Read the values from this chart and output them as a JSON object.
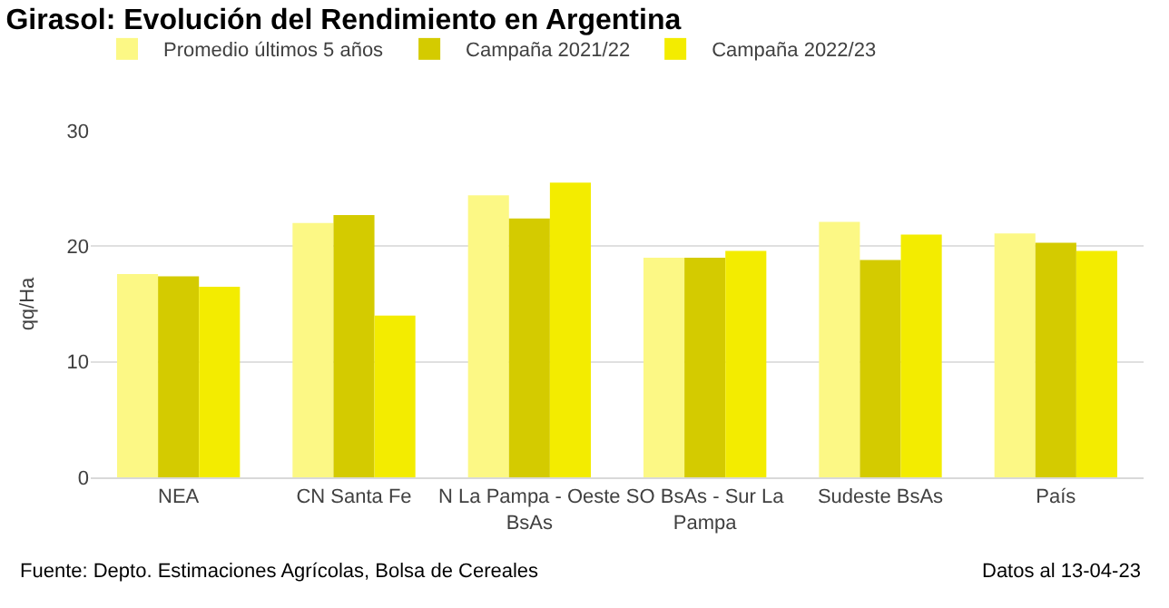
{
  "chart_data": {
    "type": "bar",
    "title": "Girasol: Evolución del Rendimiento en Argentina",
    "ylabel": "qq/Ha",
    "categories": [
      "NEA",
      "CN Santa Fe",
      "N La Pampa - Oeste BsAs",
      "SO BsAs - Sur La Pampa",
      "Sudeste BsAs",
      "País"
    ],
    "series": [
      {
        "name": "Promedio últimos 5 años",
        "color": "#fcf885",
        "values": [
          17.6,
          22.0,
          24.4,
          19.0,
          22.1,
          21.1
        ]
      },
      {
        "name": "Campaña 2021/22",
        "color": "#d4cb00",
        "values": [
          17.4,
          22.7,
          22.4,
          19.0,
          18.8,
          20.3
        ]
      },
      {
        "name": "Campaña 2022/23",
        "color": "#f3ec00",
        "values": [
          16.5,
          14.0,
          25.5,
          19.6,
          21.0,
          19.6
        ]
      }
    ],
    "ylim": [
      0,
      30
    ],
    "yticks": [
      0,
      10,
      20,
      30
    ],
    "grid": "y",
    "legend": "top left",
    "annotations": [
      "Fuente: Depto. Estimaciones Agrícolas, Bolsa de Cereales",
      "Datos al 13-04-23"
    ]
  }
}
